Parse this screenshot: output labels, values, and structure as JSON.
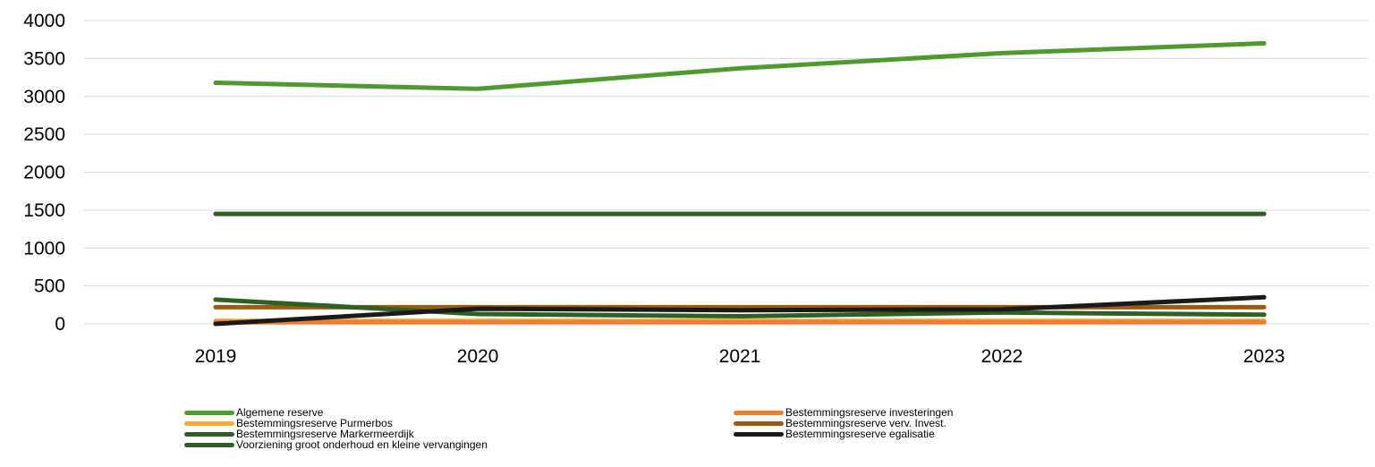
{
  "chart_data": {
    "type": "line",
    "title": "",
    "xlabel": "",
    "ylabel": "",
    "categories": [
      "2019",
      "2020",
      "2021",
      "2022",
      "2023"
    ],
    "ylim": [
      0,
      4000
    ],
    "yticks": [
      0,
      500,
      1000,
      1500,
      2000,
      2500,
      3000,
      3500,
      4000
    ],
    "grid": true,
    "legend_position": "bottom",
    "series": [
      {
        "name": "Algemene reserve",
        "color": "#4e9a2f",
        "values": [
          3180,
          3100,
          3370,
          3570,
          3700
        ]
      },
      {
        "name": "Bestemmingsreserve investeringen",
        "color": "#ed7d31",
        "values": [
          20,
          20,
          20,
          20,
          20
        ]
      },
      {
        "name": "Bestemmingsreserve Purmerbos",
        "color": "#f4a93a",
        "values": [
          40,
          40,
          40,
          40,
          40
        ]
      },
      {
        "name": "Bestemmingsreserve verv. Invest.",
        "color": "#9c5b13",
        "values": [
          220,
          220,
          220,
          220,
          220
        ]
      },
      {
        "name": "Bestemmingsreserve Markermeerdijk",
        "color": "#2e5f24",
        "values": [
          320,
          130,
          100,
          150,
          120
        ]
      },
      {
        "name": "Bestemmingsreserve egalisatie",
        "color": "#1a1a1a",
        "values": [
          0,
          200,
          180,
          190,
          350
        ]
      },
      {
        "name": "Voorziening groot onderhoud en kleine vervangingen",
        "color": "#2e5f24",
        "values": [
          1450,
          1450,
          1450,
          1450,
          1450
        ]
      }
    ]
  }
}
